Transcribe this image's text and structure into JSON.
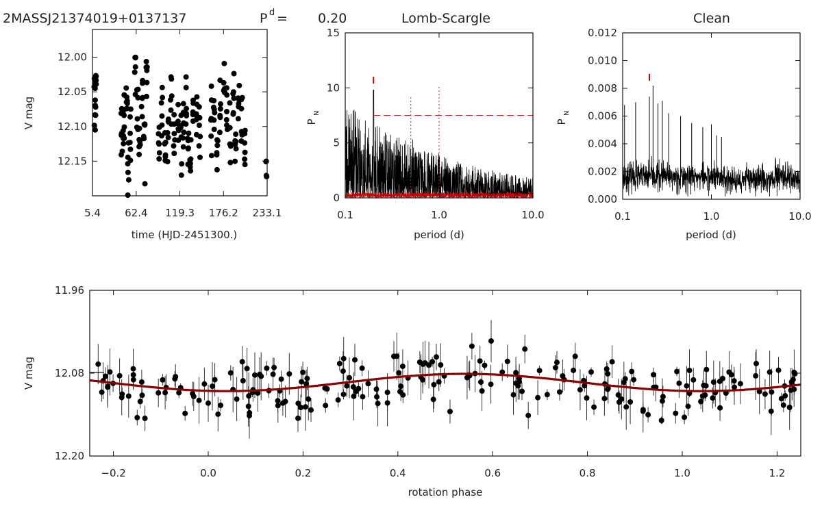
{
  "header": {
    "star_name": "2MASSJ21374019+0137137",
    "period_symbol": "P",
    "period_superscript": "d",
    "period_equals": "=",
    "period_value": "0.20"
  },
  "chart_data": [
    {
      "id": "lightcurve",
      "type": "scatter",
      "title": "",
      "xlabel": "time (HJD-2451300.)",
      "ylabel": "V mag",
      "xlim": [
        5.4,
        233.1
      ],
      "ylim": [
        12.2,
        11.96
      ],
      "xticks": [
        5.4,
        62.4,
        119.3,
        176.2,
        233.1
      ],
      "xtick_labels": [
        "5.4",
        "62.4",
        "119.3",
        "176.2",
        "233.1"
      ],
      "yticks": [
        12.0,
        12.05,
        12.1,
        12.15
      ],
      "ytick_labels": [
        "12.00",
        "12.05",
        "12.10",
        "12.15"
      ],
      "points_per_night": 6,
      "x": [
        8,
        9,
        10,
        43,
        45,
        47,
        50,
        52,
        55,
        61,
        64,
        67,
        70,
        73,
        76,
        92,
        96,
        100,
        104,
        108,
        112,
        117,
        121,
        124,
        127,
        130,
        133,
        137,
        141,
        145,
        160,
        164,
        168,
        172,
        177,
        181,
        185,
        189,
        192,
        196,
        200,
        204,
        232
      ],
      "y": [
        12.05,
        12.07,
        12.04,
        12.1,
        12.12,
        12.09,
        12.06,
        12.14,
        12.11,
        12.02,
        12.08,
        12.13,
        12.05,
        12.1,
        12.03,
        12.12,
        12.09,
        12.14,
        12.11,
        12.07,
        12.12,
        12.1,
        12.13,
        12.08,
        12.06,
        12.11,
        12.14,
        12.09,
        12.07,
        12.12,
        12.1,
        12.06,
        12.13,
        12.08,
        12.04,
        12.09,
        12.11,
        12.06,
        12.12,
        12.08,
        12.1,
        12.13,
        12.16
      ]
    },
    {
      "id": "lomb_scargle",
      "type": "line",
      "title": "Lomb-Scargle",
      "xlabel": "period (d)",
      "ylabel": "P",
      "ylabel_sub": "N",
      "xscale": "log",
      "xlim": [
        0.1,
        10.0
      ],
      "ylim": [
        0,
        15
      ],
      "xticks": [
        0.1,
        1.0,
        10.0
      ],
      "xtick_labels": [
        "0.1",
        "1.0",
        "10.0"
      ],
      "yticks": [
        0,
        5,
        10,
        15
      ],
      "ytick_labels": [
        "0",
        "5",
        "10",
        "15"
      ],
      "false_alarm_level": 7.5,
      "false_alarm_start": 0.2,
      "peak_period": 0.2,
      "peak_power": 9.8,
      "marker_power": 10.7,
      "alias_periods": [
        0.5,
        1.0
      ],
      "alias_powers": [
        9.2,
        10.2
      ],
      "noise_envelope": {
        "period": [
          0.1,
          0.15,
          0.2,
          0.3,
          0.5,
          0.7,
          1.0,
          1.5,
          2.0,
          3.0,
          5.0,
          7.0,
          10.0
        ],
        "power": [
          7.8,
          6.5,
          5.8,
          5.0,
          4.4,
          3.8,
          3.5,
          3.0,
          2.6,
          2.3,
          2.0,
          1.8,
          1.6
        ]
      },
      "window_function_max": 0.5,
      "window_function_color": "#cc0000"
    },
    {
      "id": "clean",
      "type": "line",
      "title": "Clean",
      "xlabel": "period (d)",
      "ylabel": "P",
      "ylabel_sub": "N",
      "xscale": "log",
      "xlim": [
        0.1,
        10.0
      ],
      "ylim": [
        0.0,
        0.012
      ],
      "xticks": [
        0.1,
        1.0,
        10.0
      ],
      "xtick_labels": [
        "0.1",
        "1.0",
        "10.0"
      ],
      "yticks": [
        0.0,
        0.002,
        0.004,
        0.006,
        0.008,
        0.01,
        0.012
      ],
      "ytick_labels": [
        "0.000",
        "0.002",
        "0.004",
        "0.006",
        "0.008",
        "0.010",
        "0.012"
      ],
      "peak_period": 0.2,
      "marker_power": 0.0088,
      "spikes": {
        "period": [
          0.105,
          0.14,
          0.2,
          0.22,
          0.25,
          0.28,
          0.33,
          0.45,
          0.6,
          0.8,
          1.0,
          1.15,
          1.3
        ],
        "power": [
          0.0068,
          0.007,
          0.0074,
          0.0082,
          0.0069,
          0.0071,
          0.0062,
          0.006,
          0.0055,
          0.0052,
          0.0054,
          0.0046,
          0.0045
        ]
      },
      "noise_level": 0.0016,
      "noise_spread": 0.0009
    },
    {
      "id": "phased",
      "type": "scatter",
      "title": "",
      "xlabel": "rotation phase",
      "ylabel": "V mag",
      "xlim": [
        -0.25,
        1.25
      ],
      "ylim": [
        12.2,
        11.96
      ],
      "xticks": [
        -0.2,
        0.0,
        0.2,
        0.4,
        0.6,
        0.8,
        1.0,
        1.2
      ],
      "xtick_labels": [
        "−0.2",
        "0.0",
        "0.2",
        "0.4",
        "0.6",
        "0.8",
        "1.0",
        "1.2"
      ],
      "yticks": [
        11.96,
        12.08,
        12.2
      ],
      "ytick_labels": [
        "11.96",
        "12.08",
        "12.20"
      ],
      "fit": {
        "mean": 12.0935,
        "amplitude": 0.0125,
        "phase_of_max_brightness": 0.54,
        "color": "#8b0000"
      },
      "n_points": 230,
      "scatter_sigma": 0.025,
      "error_bar": [
        0.005,
        0.035
      ]
    }
  ]
}
